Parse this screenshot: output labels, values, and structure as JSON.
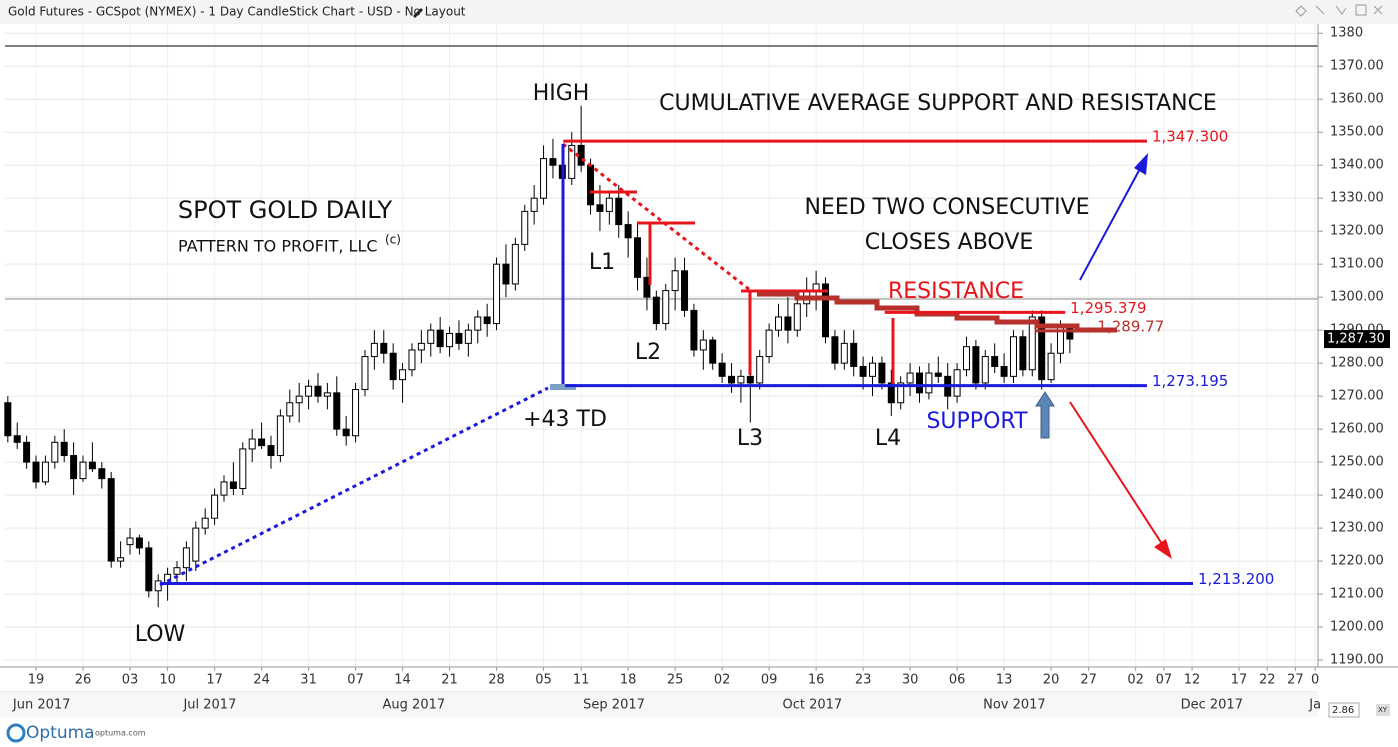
{
  "chart_data": {
    "type": "candlestick",
    "title": "Gold Futures - GCSpot (NYMEX) - 1 Day CandleStick Chart - USD - No Layout",
    "candles": [
      [
        1268,
        1270,
        1256,
        1258
      ],
      [
        1258,
        1262,
        1254,
        1256
      ],
      [
        1256,
        1258,
        1248,
        1250
      ],
      [
        1250,
        1252,
        1242,
        1244
      ],
      [
        1244,
        1252,
        1243,
        1250
      ],
      [
        1250,
        1258,
        1248,
        1256
      ],
      [
        1256,
        1260,
        1250,
        1252
      ],
      [
        1252,
        1256,
        1240,
        1245
      ],
      [
        1245,
        1252,
        1244,
        1250
      ],
      [
        1250,
        1256,
        1247,
        1248
      ],
      [
        1248,
        1250,
        1242,
        1245
      ],
      [
        1245,
        1247,
        1218,
        1220
      ],
      [
        1220,
        1226,
        1218,
        1221
      ],
      [
        1225,
        1230,
        1222,
        1227
      ],
      [
        1227,
        1228,
        1222,
        1224
      ],
      [
        1224,
        1226,
        1209,
        1211
      ],
      [
        1211,
        1216,
        1206,
        1214
      ],
      [
        1213,
        1218,
        1208,
        1216
      ],
      [
        1216,
        1220,
        1213,
        1218
      ],
      [
        1218,
        1226,
        1214,
        1224
      ],
      [
        1220,
        1232,
        1217,
        1230
      ],
      [
        1230,
        1236,
        1228,
        1233
      ],
      [
        1233,
        1242,
        1231,
        1240
      ],
      [
        1240,
        1246,
        1238,
        1244
      ],
      [
        1244,
        1250,
        1240,
        1242
      ],
      [
        1242,
        1256,
        1240,
        1254
      ],
      [
        1254,
        1260,
        1250,
        1257
      ],
      [
        1257,
        1262,
        1254,
        1255
      ],
      [
        1255,
        1258,
        1248,
        1252
      ],
      [
        1252,
        1266,
        1250,
        1264
      ],
      [
        1264,
        1272,
        1262,
        1268
      ],
      [
        1268,
        1274,
        1262,
        1270
      ],
      [
        1270,
        1275,
        1266,
        1273
      ],
      [
        1273,
        1277,
        1268,
        1270
      ],
      [
        1270,
        1274,
        1266,
        1271
      ],
      [
        1271,
        1276,
        1258,
        1260
      ],
      [
        1260,
        1264,
        1255,
        1258
      ],
      [
        1258,
        1274,
        1256,
        1272
      ],
      [
        1272,
        1284,
        1270,
        1282
      ],
      [
        1282,
        1290,
        1278,
        1286
      ],
      [
        1286,
        1290,
        1280,
        1283
      ],
      [
        1283,
        1286,
        1272,
        1275
      ],
      [
        1275,
        1280,
        1268,
        1278
      ],
      [
        1278,
        1286,
        1276,
        1284
      ],
      [
        1284,
        1290,
        1280,
        1286
      ],
      [
        1286,
        1292,
        1282,
        1290
      ],
      [
        1290,
        1294,
        1283,
        1285
      ],
      [
        1285,
        1291,
        1282,
        1289
      ],
      [
        1289,
        1293,
        1284,
        1286
      ],
      [
        1286,
        1292,
        1282,
        1290
      ],
      [
        1290,
        1296,
        1286,
        1294
      ],
      [
        1294,
        1298,
        1288,
        1292
      ],
      [
        1292,
        1312,
        1290,
        1310
      ],
      [
        1310,
        1316,
        1300,
        1304
      ],
      [
        1304,
        1318,
        1302,
        1316
      ],
      [
        1316,
        1328,
        1314,
        1326
      ],
      [
        1326,
        1334,
        1322,
        1330
      ],
      [
        1330,
        1346,
        1328,
        1342
      ],
      [
        1342,
        1348,
        1336,
        1340
      ],
      [
        1340,
        1346,
        1334,
        1336
      ],
      [
        1336,
        1350,
        1334,
        1346
      ],
      [
        1346,
        1358,
        1338,
        1340
      ],
      [
        1340,
        1342,
        1325,
        1328
      ],
      [
        1328,
        1334,
        1320,
        1326
      ],
      [
        1326,
        1332,
        1322,
        1330
      ],
      [
        1330,
        1334,
        1318,
        1322
      ],
      [
        1322,
        1326,
        1312,
        1318
      ],
      [
        1318,
        1322,
        1302,
        1306
      ],
      [
        1306,
        1312,
        1296,
        1300
      ],
      [
        1300,
        1302,
        1290,
        1292
      ],
      [
        1292,
        1304,
        1290,
        1302
      ],
      [
        1302,
        1312,
        1296,
        1308
      ],
      [
        1308,
        1312,
        1294,
        1296
      ],
      [
        1296,
        1298,
        1282,
        1284
      ],
      [
        1284,
        1290,
        1278,
        1287
      ],
      [
        1287,
        1288,
        1278,
        1280
      ],
      [
        1280,
        1283,
        1274,
        1276
      ],
      [
        1276,
        1280,
        1271,
        1274
      ],
      [
        1274,
        1278,
        1268,
        1276
      ],
      [
        1276,
        1281,
        1262,
        1274
      ],
      [
        1274,
        1284,
        1272,
        1282
      ],
      [
        1282,
        1292,
        1280,
        1290
      ],
      [
        1290,
        1298,
        1288,
        1294
      ],
      [
        1294,
        1300,
        1286,
        1290
      ],
      [
        1290,
        1302,
        1288,
        1298
      ],
      [
        1298,
        1306,
        1294,
        1302
      ],
      [
        1302,
        1308,
        1296,
        1304
      ],
      [
        1304,
        1306,
        1286,
        1288
      ],
      [
        1288,
        1290,
        1278,
        1280
      ],
      [
        1280,
        1290,
        1278,
        1286
      ],
      [
        1286,
        1290,
        1276,
        1279
      ],
      [
        1279,
        1282,
        1272,
        1276
      ],
      [
        1276,
        1282,
        1270,
        1280
      ],
      [
        1280,
        1282,
        1272,
        1274
      ],
      [
        1274,
        1278,
        1264,
        1268
      ],
      [
        1268,
        1276,
        1266,
        1274
      ],
      [
        1274,
        1280,
        1270,
        1277
      ],
      [
        1277,
        1279,
        1268,
        1271
      ],
      [
        1271,
        1280,
        1269,
        1277
      ],
      [
        1277,
        1282,
        1274,
        1276
      ],
      [
        1276,
        1280,
        1266,
        1270
      ],
      [
        1270,
        1280,
        1268,
        1278
      ],
      [
        1278,
        1288,
        1276,
        1285
      ],
      [
        1285,
        1287,
        1272,
        1274
      ],
      [
        1274,
        1284,
        1272,
        1282
      ],
      [
        1282,
        1286,
        1277,
        1279
      ],
      [
        1279,
        1283,
        1274,
        1276
      ],
      [
        1276,
        1290,
        1274,
        1288
      ],
      [
        1288,
        1290,
        1276,
        1278
      ],
      [
        1278,
        1296,
        1276,
        1294
      ],
      [
        1294,
        1296,
        1272,
        1275
      ],
      [
        1275,
        1286,
        1274,
        1283
      ],
      [
        1283,
        1293,
        1280,
        1291
      ],
      [
        1291,
        1292,
        1283,
        1287.3
      ]
    ],
    "up_color": "#ffffff",
    "down_color": "#000000",
    "xlim": [
      -0.3,
      139.4
    ],
    "xticks": [
      {
        "value": 3,
        "label": "19"
      },
      {
        "value": 8,
        "label": "26"
      },
      {
        "value": 13,
        "label": "03"
      },
      {
        "value": 17,
        "label": "10"
      },
      {
        "value": 22,
        "label": "17"
      },
      {
        "value": 27,
        "label": "24"
      },
      {
        "value": 32,
        "label": "31"
      },
      {
        "value": 37,
        "label": "07"
      },
      {
        "value": 42,
        "label": "14"
      },
      {
        "value": 47,
        "label": "21"
      },
      {
        "value": 52,
        "label": "28"
      },
      {
        "value": 57,
        "label": "05"
      },
      {
        "value": 61,
        "label": "11"
      },
      {
        "value": 66,
        "label": "18"
      },
      {
        "value": 71,
        "label": "25"
      },
      {
        "value": 76,
        "label": "02"
      },
      {
        "value": 81,
        "label": "09"
      },
      {
        "value": 86,
        "label": "16"
      },
      {
        "value": 91,
        "label": "23"
      },
      {
        "value": 96,
        "label": "30"
      },
      {
        "value": 101,
        "label": "06"
      },
      {
        "value": 106,
        "label": "13"
      },
      {
        "value": 111,
        "label": "20"
      },
      {
        "value": 115,
        "label": "27"
      },
      {
        "value": 120,
        "label": "02"
      },
      {
        "value": 123,
        "label": "07"
      },
      {
        "value": 126,
        "label": "12"
      },
      {
        "value": 131,
        "label": "17"
      },
      {
        "value": 134,
        "label": "22"
      },
      {
        "value": 137,
        "label": "27"
      },
      {
        "value": 139.1,
        "label": "0"
      }
    ],
    "month_ticks": [
      {
        "value": 3.6,
        "label": "Jun 2017"
      },
      {
        "value": 21.5,
        "label": "Jul 2017"
      },
      {
        "value": 43.2,
        "label": "Aug 2017"
      },
      {
        "value": 64.5,
        "label": "Sep 2017"
      },
      {
        "value": 85.6,
        "label": "Oct 2017"
      },
      {
        "value": 107.1,
        "label": "Nov 2017"
      },
      {
        "value": 128.1,
        "label": "Dec 2017"
      },
      {
        "value": 139.1,
        "label": "Ja"
      }
    ],
    "ylim": [
      1187.9,
      1382.8
    ],
    "yticks": [
      {
        "value": 1380,
        "label": "1380"
      },
      {
        "value": 1370,
        "label": "1370.00"
      },
      {
        "value": 1360,
        "label": "1360.00"
      },
      {
        "value": 1350,
        "label": "1350.00"
      },
      {
        "value": 1340,
        "label": "1340.00"
      },
      {
        "value": 1330,
        "label": "1330.00"
      },
      {
        "value": 1320,
        "label": "1320.00"
      },
      {
        "value": 1310,
        "label": "1310.00"
      },
      {
        "value": 1300,
        "label": "1300.00"
      },
      {
        "value": 1290,
        "label": "1290.00"
      },
      {
        "value": 1280,
        "label": "1280.00"
      },
      {
        "value": 1270,
        "label": "1270.00"
      },
      {
        "value": 1260,
        "label": "1260.00"
      },
      {
        "value": 1250,
        "label": "1250.00"
      },
      {
        "value": 1240,
        "label": "1240.00"
      },
      {
        "value": 1230,
        "label": "1230.00"
      },
      {
        "value": 1220,
        "label": "1220.00"
      },
      {
        "value": 1210,
        "label": "1210.00"
      },
      {
        "value": 1200,
        "label": "1200.00"
      },
      {
        "value": 1190,
        "label": "1190.00"
      }
    ],
    "grid": true,
    "last_price": {
      "value": 1287.3,
      "label": "1,287.30"
    },
    "levels": [
      {
        "value": 1347.3,
        "label": "1,347.300",
        "color": "#e8141b",
        "from": 59.1,
        "to": 121.2
      },
      {
        "value": 1295.379,
        "label": "1,295.379",
        "color": "#e8141b",
        "from": 93.3,
        "to": 112.5
      },
      {
        "value": 1289.77,
        "label": "1,289.77",
        "color": "#b8302c",
        "from": 109.3,
        "to": 115.4
      },
      {
        "value": 1273.195,
        "label": "1,273.195",
        "color": "#1a1adc",
        "from": 59.3,
        "to": 121.2
      },
      {
        "value": 1213.2,
        "label": "1,213.200",
        "color": "#1a1adc",
        "from": 16.2,
        "to": 126.1
      }
    ],
    "annotations": [
      "HIGH",
      "LOW",
      "L1",
      "L2",
      "L3",
      "L4",
      "+43 TD",
      "SPOT GOLD DAILY",
      "PATTERN TO PROFIT, LLC",
      "(c)",
      "CUMULATIVE AVERAGE SUPPORT AND RESISTANCE",
      "NEED TWO CONSECUTIVE",
      "CLOSES ABOVE",
      "RESISTANCE",
      "SUPPORT"
    ]
  },
  "footer": {
    "brand": "Optuma",
    "site": "optuma.com",
    "scale": "2.86",
    "mode": "XY"
  }
}
